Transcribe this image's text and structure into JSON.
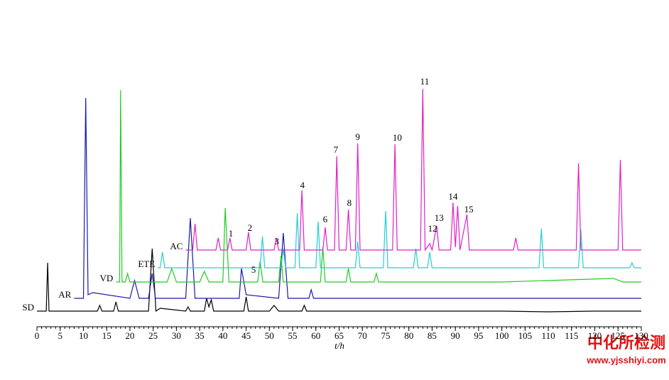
{
  "chart_data": {
    "type": "line",
    "x_label": "t/h",
    "xlim": [
      0,
      130
    ],
    "xticks": [
      0,
      5,
      10,
      15,
      20,
      25,
      30,
      35,
      40,
      45,
      50,
      55,
      60,
      65,
      70,
      75,
      80,
      85,
      90,
      95,
      100,
      105,
      110,
      115,
      120,
      125,
      130
    ],
    "ylim": [
      0,
      340
    ],
    "series": [
      {
        "name": "SD",
        "color": "#000000",
        "x": [
          0,
          2,
          2.3,
          2.6,
          5,
          13,
          13.5,
          14,
          16.5,
          17,
          17.5,
          24,
          24.8,
          25.6,
          26.5,
          32,
          32.5,
          33,
          36,
          36.5,
          37,
          37.5,
          38,
          44.5,
          45,
          45.5,
          50,
          51,
          52,
          57,
          57.5,
          58,
          65,
          80,
          100,
          110,
          120,
          130
        ],
        "values": [
          22,
          22,
          90,
          22,
          22,
          22,
          30,
          22,
          22,
          35,
          22,
          22,
          110,
          22,
          26,
          22,
          28,
          22,
          22,
          40,
          28,
          38,
          22,
          22,
          42,
          22,
          22,
          30,
          22,
          22,
          30,
          22,
          22,
          22,
          22,
          21,
          22,
          22
        ]
      },
      {
        "name": "AR",
        "color": "#1a1aa8",
        "x": [
          8,
          10,
          10.5,
          11,
          12,
          20,
          21,
          22,
          24,
          24.8,
          25.5,
          32,
          33,
          34,
          43.5,
          44,
          45,
          52,
          53,
          54,
          58.5,
          59,
          59.5,
          70,
          90,
          110,
          130
        ],
        "values": [
          40,
          40,
          322,
          45,
          48,
          40,
          65,
          40,
          40,
          75,
          40,
          40,
          153,
          40,
          40,
          82,
          45,
          40,
          132,
          40,
          40,
          52,
          40,
          40,
          40,
          40,
          40
        ]
      },
      {
        "name": "VD",
        "color": "#22cc22",
        "x": [
          17,
          17.8,
          18,
          18.3,
          19,
          19.5,
          20,
          28,
          29,
          30,
          35,
          36,
          37,
          40,
          40.5,
          41.3,
          47.5,
          48,
          48.6,
          52,
          52.5,
          53,
          61,
          61.5,
          62,
          66.5,
          67,
          67.5,
          72.5,
          73,
          73.5,
          100,
          124,
          126,
          130
        ],
        "values": [
          63,
          63,
          333,
          63,
          63,
          75,
          63,
          63,
          82,
          63,
          63,
          78,
          63,
          63,
          167,
          63,
          63,
          92,
          63,
          63,
          100,
          63,
          63,
          112,
          63,
          63,
          82,
          63,
          63,
          75,
          63,
          63,
          68,
          63,
          63
        ]
      },
      {
        "name": "ETE",
        "color": "#22d0d0",
        "x": [
          26,
          26.5,
          27,
          27.5,
          48,
          48.5,
          49,
          52.5,
          53,
          53.5,
          55.5,
          56,
          56.5,
          60,
          60.5,
          61,
          68.5,
          69,
          69.5,
          74.5,
          75,
          75.5,
          81,
          81.5,
          82,
          84,
          84.5,
          85,
          108,
          108.5,
          109,
          116.5,
          117,
          117.5,
          127.5,
          128,
          128.5,
          130
        ],
        "values": [
          83,
          83,
          105,
          83,
          83,
          127,
          83,
          83,
          110,
          83,
          83,
          160,
          83,
          83,
          148,
          83,
          83,
          120,
          83,
          83,
          163,
          83,
          83,
          110,
          83,
          83,
          105,
          83,
          83,
          138,
          83,
          83,
          137,
          83,
          83,
          90,
          83,
          83
        ]
      },
      {
        "name": "AC",
        "color": "#e020c8",
        "x": [
          32,
          33.5,
          34,
          34.5,
          38.5,
          39,
          39.5,
          41,
          41.5,
          42,
          45,
          45.5,
          46,
          51,
          51.5,
          52,
          56.5,
          57,
          57.5,
          61.5,
          62,
          62.5,
          64,
          64.5,
          65,
          66.5,
          67,
          67.5,
          68.5,
          69,
          69.5,
          76.5,
          77,
          77.5,
          82.5,
          83,
          83.5,
          84.5,
          85,
          86,
          86.5,
          89,
          89.5,
          90,
          90.5,
          91,
          92.5,
          93,
          102.5,
          103,
          103.5,
          116,
          116.5,
          117,
          125,
          125.5,
          126,
          130
        ],
        "values": [
          108,
          108,
          145,
          108,
          108,
          125,
          108,
          108,
          125,
          108,
          108,
          133,
          108,
          108,
          125,
          108,
          108,
          192,
          108,
          108,
          140,
          108,
          108,
          240,
          108,
          108,
          165,
          108,
          108,
          258,
          108,
          108,
          257,
          108,
          108,
          335,
          108,
          117,
          108,
          142,
          108,
          108,
          175,
          112,
          170,
          108,
          158,
          108,
          108,
          125,
          108,
          108,
          230,
          108,
          108,
          235,
          108,
          108
        ]
      }
    ],
    "annotations": [
      {
        "text": "1",
        "x": 41.7,
        "y": 130
      },
      {
        "text": "2",
        "x": 45.8,
        "y": 138
      },
      {
        "text": "3",
        "x": 51.6,
        "y": 119
      },
      {
        "text": "4",
        "x": 57.1,
        "y": 198
      },
      {
        "text": "5",
        "x": 46.6,
        "y": 79
      },
      {
        "text": "6",
        "x": 62,
        "y": 150
      },
      {
        "text": "7",
        "x": 64.3,
        "y": 248
      },
      {
        "text": "8",
        "x": 67.2,
        "y": 173
      },
      {
        "text": "9",
        "x": 69,
        "y": 266
      },
      {
        "text": "10",
        "x": 77.5,
        "y": 265
      },
      {
        "text": "11",
        "x": 83.4,
        "y": 344
      },
      {
        "text": "12",
        "x": 85.1,
        "y": 137
      },
      {
        "text": "13",
        "x": 86.5,
        "y": 152
      },
      {
        "text": "14",
        "x": 89.5,
        "y": 182
      },
      {
        "text": "15",
        "x": 92.9,
        "y": 164
      }
    ],
    "watermark": {
      "title": "中化所检测",
      "url": "www.yjsshiyi.com"
    }
  }
}
